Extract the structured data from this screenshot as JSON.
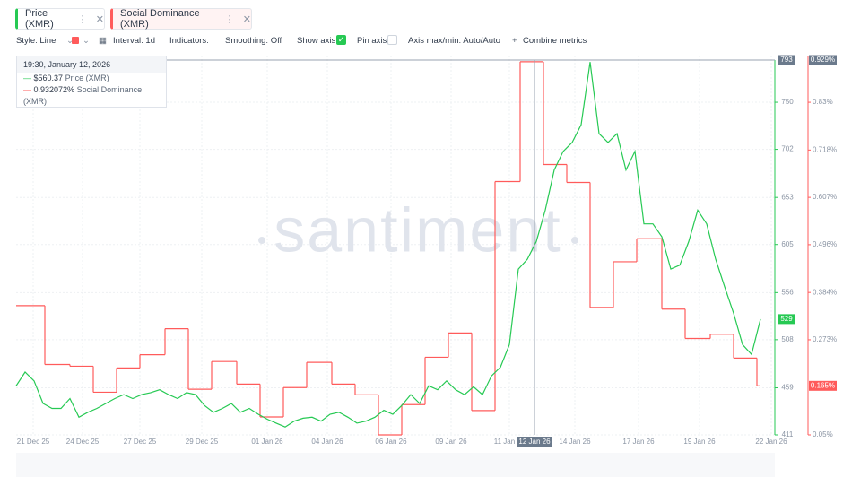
{
  "tabs": [
    "Price (XMR)",
    "Social Dominance (XMR)"
  ],
  "toolbar": {
    "style": "Style: Line",
    "interval": "Interval: 1d",
    "indicators": "Indicators:",
    "smoothing": "Smoothing: Off",
    "show_axis": "Show axis",
    "pin_axis": "Pin axis",
    "axis_maxmin": "Axis max/min: Auto/Auto",
    "combine": "Combine metrics"
  },
  "tooltip": {
    "date": "19:30, January 12, 2026",
    "rows": [
      {
        "value": "$560.37",
        "metric": "Price (XMR)"
      },
      {
        "value": "0.932072%",
        "metric": "Social Dominance (XMR)"
      }
    ]
  },
  "watermark": "santiment",
  "chart_data": {
    "type": "line",
    "x": [
      0,
      1,
      2,
      3,
      4,
      5,
      6,
      7,
      8,
      9,
      10,
      11,
      12,
      13,
      14,
      15,
      16,
      17,
      18,
      19,
      20,
      21,
      22,
      23,
      24,
      25,
      26,
      27,
      28,
      29,
      30,
      31,
      32,
      33,
      34,
      35,
      36,
      37,
      38,
      39,
      40,
      41,
      42,
      43,
      44,
      45,
      46,
      47,
      48,
      49,
      50,
      51,
      52,
      53,
      54,
      55,
      56,
      57,
      58,
      59,
      60,
      61,
      62,
      63,
      64,
      65,
      66,
      67,
      68,
      69,
      70,
      71,
      72,
      73,
      74,
      75,
      76,
      77,
      78,
      79,
      80,
      81,
      82,
      83
    ],
    "xlim": [
      0,
      84.6
    ],
    "xticks": [
      {
        "value": 1.9,
        "label": "21 Dec 25"
      },
      {
        "value": 7.4,
        "label": "24 Dec 25"
      },
      {
        "value": 13.8,
        "label": "27 Dec 25"
      },
      {
        "value": 20.7,
        "label": "29 Dec 25"
      },
      {
        "value": 28,
        "label": "01 Jan 26"
      },
      {
        "value": 34.7,
        "label": "04 Jan 26"
      },
      {
        "value": 41.8,
        "label": "06 Jan 26"
      },
      {
        "value": 48.5,
        "label": "09 Jan 26"
      },
      {
        "value": 55,
        "label": "11 Jan 26"
      },
      {
        "value": 62.3,
        "label": "14 Jan 26"
      },
      {
        "value": 69.4,
        "label": "17 Jan 26"
      },
      {
        "value": 76.2,
        "label": "19 Jan 26"
      },
      {
        "value": 84.2,
        "label": "22 Jan 26"
      }
    ],
    "cursor": {
      "value": 57.8,
      "label": "12 Jan 26"
    },
    "ylim": [
      411,
      793
    ],
    "yticks": [
      411,
      459,
      508,
      556,
      605,
      653,
      702,
      750
    ],
    "y2lim": [
      0.05,
      0.929
    ],
    "y2ticks": [
      {
        "value": 0.05,
        "label": "0.05%"
      },
      {
        "value": 0.273,
        "label": "0.273%"
      },
      {
        "value": 0.384,
        "label": "0.384%"
      },
      {
        "value": 0.496,
        "label": "0.496%"
      },
      {
        "value": 0.607,
        "label": "0.607%"
      },
      {
        "value": 0.718,
        "label": "0.718%"
      },
      {
        "value": 0.83,
        "label": "0.83%"
      }
    ],
    "markers": [
      {
        "value": 793,
        "color": "#6b7a8c"
      },
      {
        "value": 529,
        "color": "#26c953"
      }
    ],
    "y2markers": [
      {
        "value": 0.929,
        "label": "0.929%",
        "color": "#6b7a8c"
      },
      {
        "value": 0.165,
        "label": "0.165%",
        "color": "#ff5b5b"
      }
    ],
    "grid": true,
    "series": [
      {
        "name": "Price (XMR)",
        "color": "#26c953",
        "values": [
          461,
          475,
          466,
          443,
          438,
          438,
          448,
          429,
          434,
          438,
          443,
          448,
          452,
          448,
          452,
          454,
          457,
          452,
          448,
          454,
          452,
          441,
          434,
          438,
          443,
          434,
          438,
          432,
          427,
          423,
          419,
          425,
          428,
          429,
          425,
          432,
          434,
          429,
          423,
          425,
          429,
          436,
          432,
          441,
          452,
          443,
          461,
          457,
          466,
          457,
          452,
          460,
          452,
          471,
          480,
          503,
          580,
          590,
          608,
          640,
          681,
          700,
          709,
          727,
          791,
          718,
          709,
          718,
          681,
          700,
          626,
          626,
          613,
          580,
          584,
          608,
          640,
          626,
          590,
          562,
          535,
          503,
          493,
          529
        ]
      },
      {
        "name": "Social Dominance (XMR)",
        "color": "#ff5b5b",
        "axis": "y2",
        "step": true,
        "x": [
          0,
          3.2,
          6,
          8.6,
          11.2,
          13.8,
          16.6,
          19.2,
          21.8,
          24.6,
          27.2,
          29.8,
          32.4,
          35.2,
          37.8,
          40.4,
          43,
          45.6,
          48.2,
          50.8,
          53.4,
          56.2,
          58.8,
          61.4,
          64,
          66.6,
          69.2,
          72,
          74.6,
          77.4,
          80,
          82.6
        ],
        "values": [
          0.353,
          0.215,
          0.211,
          0.15,
          0.207,
          0.238,
          0.299,
          0.157,
          0.222,
          0.169,
          0.092,
          0.161,
          0.22,
          0.169,
          0.144,
          0.05,
          0.121,
          0.232,
          0.289,
          0.107,
          0.644,
          0.925,
          0.684,
          0.642,
          0.349,
          0.456,
          0.51,
          0.345,
          0.276,
          0.286,
          0.23,
          0.165
        ]
      }
    ]
  }
}
